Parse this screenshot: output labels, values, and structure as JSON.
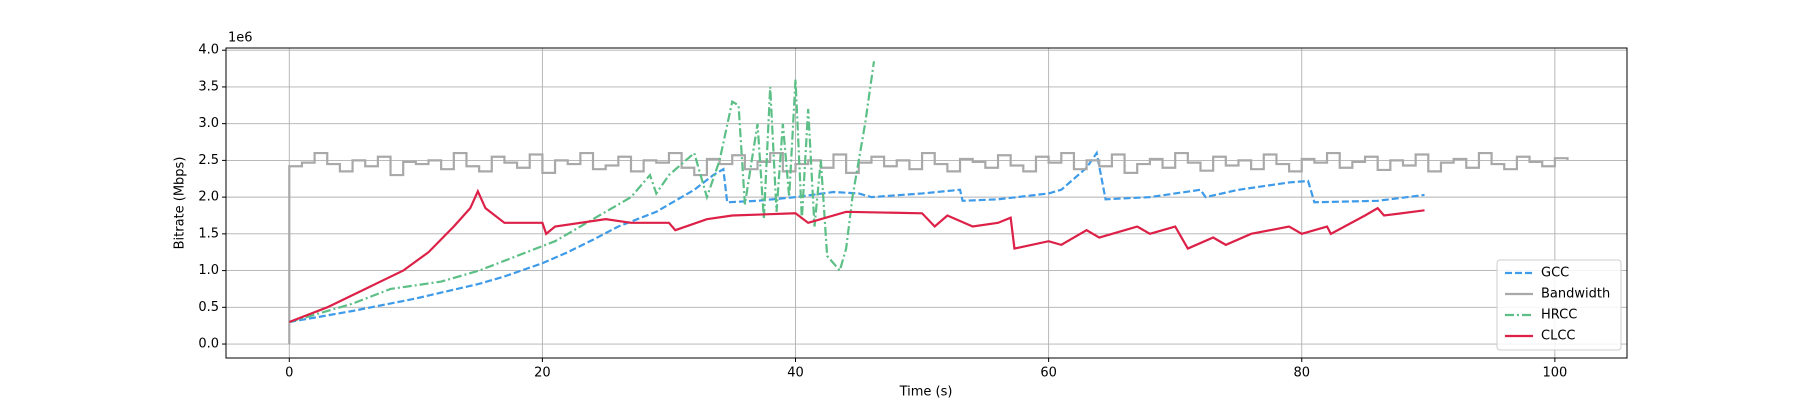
{
  "chart_data": {
    "type": "line",
    "xlabel": "Time (s)",
    "ylabel": "Bitrate (Mbps)",
    "y_offset_text": "1e6",
    "xlim": [
      -5,
      105.7
    ],
    "ylim": [
      -0.19,
      4.03
    ],
    "xticks": [
      0,
      20,
      40,
      60,
      80,
      100
    ],
    "yticks": [
      {
        "value": 0,
        "label": "0.0"
      },
      0.5,
      {
        "value": 1,
        "label": "1.0"
      },
      1.5,
      {
        "value": 2,
        "label": "2.0"
      },
      2.5,
      {
        "value": 3,
        "label": "3.0"
      },
      3.5,
      {
        "value": 4,
        "label": "4.0"
      }
    ],
    "grid": true,
    "legend": "lower right",
    "series": [
      {
        "name": "GCC",
        "color": "#3d9be9",
        "linestyle": "dashed",
        "x": [
          0,
          5,
          10,
          15,
          17,
          20,
          22,
          24,
          26,
          29,
          32,
          33.5,
          34.3,
          34.6,
          37,
          40,
          43,
          45,
          46,
          50,
          53,
          53.2,
          56,
          60,
          61,
          63,
          63.8,
          64.5,
          68,
          72,
          72.4,
          75,
          79,
          80.5,
          81,
          86,
          89.7
        ],
        "values": [
          0.3,
          0.45,
          0.62,
          0.82,
          0.92,
          1.1,
          1.25,
          1.42,
          1.6,
          1.8,
          2.1,
          2.3,
          2.38,
          1.93,
          1.95,
          2.0,
          2.07,
          2.05,
          2.0,
          2.05,
          2.1,
          1.95,
          1.97,
          2.05,
          2.1,
          2.4,
          2.6,
          1.97,
          2.0,
          2.1,
          2.0,
          2.1,
          2.2,
          2.22,
          1.93,
          1.95,
          2.03
        ]
      },
      {
        "name": "Bandwidth",
        "color": "#a9a9a9",
        "linestyle": "solid",
        "drawstyle": "steps",
        "x": [
          0,
          0,
          1,
          2,
          3,
          4,
          5,
          6,
          7,
          8,
          9,
          10,
          11,
          12,
          13,
          14,
          15,
          16,
          17,
          18,
          19,
          20,
          21,
          22,
          23,
          24,
          25,
          26,
          27,
          28,
          29,
          30,
          31,
          32,
          33,
          34,
          35,
          36,
          37,
          38,
          39,
          40,
          41,
          42,
          43,
          44,
          45,
          46,
          47,
          48,
          49,
          50,
          51,
          52,
          53,
          54,
          55,
          56,
          57,
          58,
          59,
          60,
          61,
          62,
          63,
          64,
          65,
          66,
          67,
          68,
          69,
          70,
          71,
          72,
          73,
          74,
          75,
          76,
          77,
          78,
          79,
          80,
          81,
          82,
          83,
          84,
          85,
          86,
          87,
          88,
          89,
          90,
          91,
          92,
          93,
          94,
          95,
          96,
          97,
          98,
          99,
          100,
          101
        ],
        "values": [
          0,
          2.42,
          2.47,
          2.6,
          2.45,
          2.35,
          2.5,
          2.42,
          2.55,
          2.3,
          2.48,
          2.45,
          2.5,
          2.38,
          2.6,
          2.42,
          2.35,
          2.55,
          2.47,
          2.4,
          2.58,
          2.33,
          2.5,
          2.45,
          2.6,
          2.38,
          2.43,
          2.55,
          2.35,
          2.5,
          2.47,
          2.6,
          2.4,
          2.3,
          2.52,
          2.45,
          2.57,
          2.38,
          2.48,
          2.6,
          2.35,
          2.45,
          2.5,
          2.4,
          2.58,
          2.33,
          2.47,
          2.55,
          2.42,
          2.5,
          2.38,
          2.6,
          2.45,
          2.35,
          2.52,
          2.48,
          2.4,
          2.57,
          2.43,
          2.35,
          2.55,
          2.47,
          2.6,
          2.38,
          2.5,
          2.42,
          2.58,
          2.33,
          2.45,
          2.52,
          2.4,
          2.6,
          2.47,
          2.36,
          2.55,
          2.43,
          2.5,
          2.38,
          2.58,
          2.45,
          2.35,
          2.52,
          2.47,
          2.6,
          2.4,
          2.48,
          2.55,
          2.37,
          2.5,
          2.43,
          2.58,
          2.35,
          2.47,
          2.52,
          2.4,
          2.6,
          2.45,
          2.38,
          2.55,
          2.48,
          2.42,
          2.53,
          2.5
        ]
      },
      {
        "name": "HRCC",
        "color": "#5bbf86",
        "linestyle": "dashdot",
        "x": [
          0,
          5,
          8,
          12,
          15,
          18,
          21,
          24,
          27,
          28.5,
          29,
          30,
          32,
          33,
          34,
          35,
          35.5,
          36,
          37,
          37.5,
          38,
          38.5,
          39,
          39.5,
          40,
          40.5,
          41,
          41.5,
          42,
          42.5,
          43.5,
          44,
          44.5,
          45.5,
          46.2
        ],
        "values": [
          0.3,
          0.55,
          0.75,
          0.85,
          1.0,
          1.2,
          1.4,
          1.7,
          2.0,
          2.3,
          2.05,
          2.3,
          2.6,
          2.0,
          2.5,
          3.3,
          3.25,
          1.9,
          3.0,
          1.7,
          3.5,
          1.8,
          3.0,
          2.0,
          3.6,
          1.7,
          3.2,
          1.6,
          2.5,
          1.2,
          1.0,
          1.3,
          2.0,
          3.0,
          3.85
        ]
      },
      {
        "name": "CLCC",
        "color": "#dc2047",
        "linestyle": "solid",
        "x": [
          0,
          3,
          6,
          9,
          11,
          13,
          14.3,
          14.9,
          15.5,
          17,
          20,
          20.3,
          21,
          25,
          27,
          30,
          30.5,
          33,
          35,
          40,
          41,
          44,
          50,
          51,
          52,
          54,
          56,
          57,
          57.3,
          60,
          61,
          63,
          64,
          67,
          68,
          70,
          71,
          73,
          74,
          76,
          79,
          80,
          82,
          82.3,
          85,
          86,
          86.5,
          89.7
        ],
        "values": [
          0.3,
          0.5,
          0.75,
          1.0,
          1.25,
          1.6,
          1.85,
          2.08,
          1.85,
          1.65,
          1.65,
          1.5,
          1.6,
          1.7,
          1.65,
          1.65,
          1.55,
          1.7,
          1.75,
          1.78,
          1.65,
          1.8,
          1.78,
          1.6,
          1.75,
          1.6,
          1.65,
          1.72,
          1.3,
          1.4,
          1.35,
          1.55,
          1.45,
          1.6,
          1.5,
          1.6,
          1.3,
          1.45,
          1.35,
          1.5,
          1.6,
          1.5,
          1.6,
          1.5,
          1.75,
          1.85,
          1.75,
          1.82
        ]
      }
    ]
  }
}
